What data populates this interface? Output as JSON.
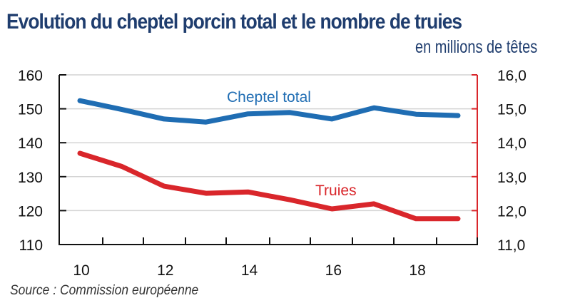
{
  "chart_data": {
    "type": "line",
    "title": "Evolution du cheptel porcin total et le nombre de truies",
    "subtitle": "en millions de têtes",
    "source": "Source : Commission européenne",
    "categories": [
      "10",
      "11",
      "12",
      "13",
      "14",
      "15",
      "16",
      "17",
      "18",
      "19"
    ],
    "x_tick_labels": [
      "10",
      "12",
      "14",
      "16",
      "18"
    ],
    "xlabel": "",
    "left_axis": {
      "label": "",
      "ylim": [
        110,
        160
      ],
      "ticks": [
        160,
        150,
        140,
        130,
        120,
        110
      ],
      "tick_labels": [
        "160",
        "150",
        "140",
        "130",
        "120",
        "110"
      ],
      "color": "#111111"
    },
    "right_axis": {
      "label": "",
      "ylim": [
        11.0,
        16.0
      ],
      "ticks": [
        16.0,
        15.0,
        14.0,
        13.0,
        12.0,
        11.0
      ],
      "tick_labels": [
        "16,0",
        "15,0",
        "14,0",
        "13,0",
        "12,0",
        "11,0"
      ],
      "color": "#d9262b"
    },
    "grid": true,
    "series": [
      {
        "name": "Cheptel total",
        "axis": "left",
        "color": "#1f6db3",
        "values": [
          152.4,
          149.8,
          147.0,
          146.1,
          148.5,
          148.9,
          147.0,
          150.3,
          148.4,
          148.0
        ]
      },
      {
        "name": "Truies",
        "axis": "right",
        "color": "#d9262b",
        "values": [
          13.69,
          13.3,
          12.72,
          12.51,
          12.55,
          12.32,
          12.05,
          12.2,
          11.76,
          11.76
        ]
      }
    ]
  }
}
